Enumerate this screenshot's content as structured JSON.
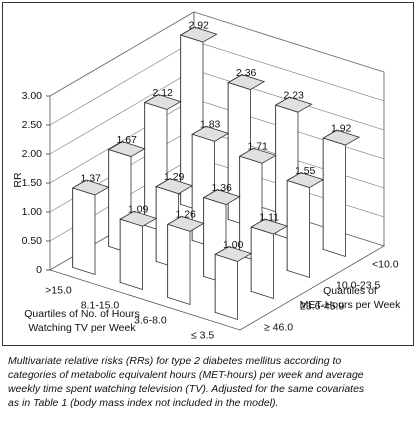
{
  "chart_data": {
    "type": "bar3d",
    "y_label": "RR",
    "x_label": [
      "Quartiles of No. of Hours",
      "Watching TV per Week"
    ],
    "z_label": [
      "Quartiles of",
      "MET-Hours per Week"
    ],
    "categories": [
      ">15.0",
      "8.1-15.0",
      "3.6-8.0",
      "≤ 3.5"
    ],
    "series": [
      {
        "name": "<10.0",
        "values": [
          2.92,
          2.36,
          2.23,
          1.92
        ],
        "value_labels": [
          "2.92",
          "2.36",
          "2.23",
          "1.92"
        ]
      },
      {
        "name": "10.0-23.5",
        "values": [
          2.12,
          1.83,
          1.71,
          1.55
        ],
        "value_labels": [
          "2.12",
          "1.83",
          "1.71",
          "1.55"
        ]
      },
      {
        "name": "23.6-45.9",
        "values": [
          1.67,
          1.29,
          1.36,
          1.11
        ],
        "value_labels": [
          "1.67",
          "1.29",
          "1.36",
          "1.11"
        ]
      },
      {
        "name": "≥ 46.0",
        "values": [
          1.37,
          1.09,
          1.26,
          1.0
        ],
        "value_labels": [
          "1.37",
          "1.09",
          "1.26",
          "1.00"
        ]
      }
    ],
    "ylim": [
      0,
      3
    ],
    "yticks": [
      0,
      {
        "value": 0.5,
        "label": "0.50"
      },
      {
        "value": 1,
        "label": "1.00"
      },
      {
        "value": 1.5,
        "label": "1.50"
      },
      {
        "value": 2,
        "label": "2.00"
      },
      {
        "value": 2.5,
        "label": "2.50"
      },
      {
        "value": 3,
        "label": "3.00"
      }
    ],
    "grid": true,
    "color": "#ffffff",
    "side_color": "#b8b8b8",
    "top_color": "#e0e0e0",
    "caption": [
      "Multivariate relative risks (RRs) for type 2 diabetes mellitus according to",
      "categories of metabolic equivalent hours (MET-hours) per week and average",
      "weekly time spent watching television (TV). Adjusted for the same covariates",
      "as in Table 1 (body mass index not included in the model)."
    ]
  }
}
